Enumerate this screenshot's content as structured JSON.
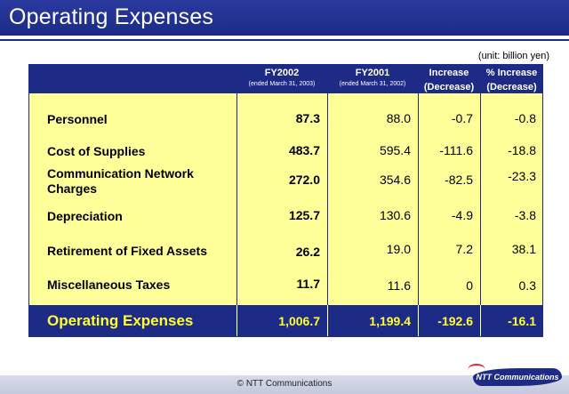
{
  "header": {
    "title": "Operating Expenses"
  },
  "unit": "(unit: billion yen)",
  "columns": [
    {
      "title": "FY2002",
      "sub": "(ended March 31, 2003)"
    },
    {
      "title": "FY2001",
      "sub": "(ended March 31, 2002)"
    },
    {
      "title": "Increase",
      "sub": "(Decrease)"
    },
    {
      "title": "% Increase",
      "sub": "(Decrease)"
    }
  ],
  "rows": [
    {
      "label": "Personnel",
      "v": [
        "87.3",
        "88.0",
        "-0.7",
        "-0.8"
      ]
    },
    {
      "label": "Cost of Supplies",
      "v": [
        "483.7",
        "595.4",
        "-111.6",
        "-18.8"
      ]
    },
    {
      "label": "Communication Network",
      "label2": "Charges",
      "v": [
        "272.0",
        "354.6",
        "-82.5",
        "-23.3"
      ]
    },
    {
      "label": "Depreciation",
      "v": [
        "125.7",
        "130.6",
        "-4.9",
        "-3.8"
      ]
    },
    {
      "label": "Retirement of Fixed Assets",
      "v": [
        "26.2",
        "19.0",
        "7.2",
        "38.1"
      ]
    },
    {
      "label": "Miscellaneous Taxes",
      "v": [
        "11.7",
        "11.6",
        "0",
        "0.3"
      ]
    }
  ],
  "total": {
    "label": "Operating Expenses",
    "v": [
      "1,006.7",
      "1,199.4",
      "-192.6",
      "-16.1"
    ]
  },
  "footer": {
    "copyright": "© NTT Communications",
    "logo": "NTT Communications"
  },
  "colors": {
    "navy": "#1d2a86",
    "panel": "#ffff99",
    "total_text": "#ffff33"
  }
}
